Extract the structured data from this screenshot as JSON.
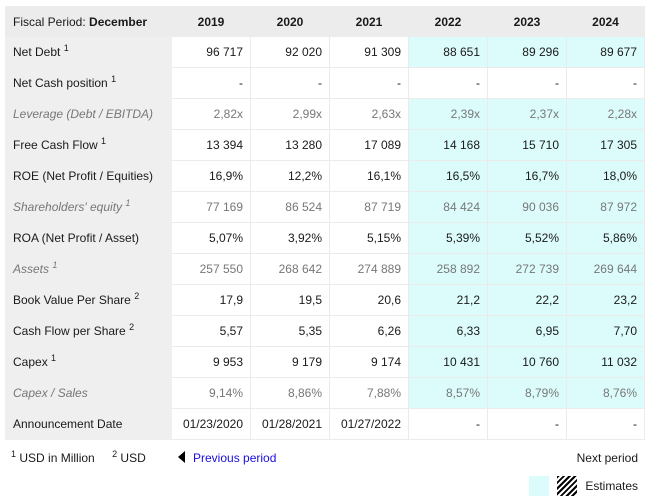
{
  "header": {
    "fiscal_label": "Fiscal Period:",
    "fiscal_value": "December",
    "years": [
      "2019",
      "2020",
      "2021",
      "2022",
      "2023",
      "2024"
    ]
  },
  "rows": [
    {
      "label": "Net Debt",
      "sup": "1",
      "italic": false,
      "est": true,
      "values": [
        "96 717",
        "92 020",
        "91 309",
        "88 651",
        "89 296",
        "89 677"
      ]
    },
    {
      "label": "Net Cash position",
      "sup": "1",
      "italic": false,
      "est": false,
      "values": [
        "-",
        "-",
        "-",
        "-",
        "-",
        "-"
      ]
    },
    {
      "label": "Leverage (Debt / EBITDA)",
      "sup": "",
      "italic": true,
      "est": true,
      "values": [
        "2,82x",
        "2,99x",
        "2,63x",
        "2,39x",
        "2,37x",
        "2,28x"
      ]
    },
    {
      "label": "Free Cash Flow",
      "sup": "1",
      "italic": false,
      "est": true,
      "values": [
        "13 394",
        "13 280",
        "17 089",
        "14 168",
        "15 710",
        "17 305"
      ]
    },
    {
      "label": "ROE (Net Profit / Equities)",
      "sup": "",
      "italic": false,
      "est": true,
      "values": [
        "16,9%",
        "12,2%",
        "16,1%",
        "16,5%",
        "16,7%",
        "18,0%"
      ]
    },
    {
      "label": "Shareholders' equity",
      "sup": "1",
      "italic": true,
      "est": true,
      "values": [
        "77 169",
        "86 524",
        "87 719",
        "84 424",
        "90 036",
        "87 972"
      ]
    },
    {
      "label": "ROA (Net Profit / Asset)",
      "sup": "",
      "italic": false,
      "est": true,
      "values": [
        "5,07%",
        "3,92%",
        "5,15%",
        "5,39%",
        "5,52%",
        "5,86%"
      ]
    },
    {
      "label": "Assets",
      "sup": "1",
      "italic": true,
      "est": true,
      "values": [
        "257 550",
        "268 642",
        "274 889",
        "258 892",
        "272 739",
        "269 644"
      ]
    },
    {
      "label": "Book Value Per Share",
      "sup": "2",
      "italic": false,
      "est": true,
      "values": [
        "17,9",
        "19,5",
        "20,6",
        "21,2",
        "22,2",
        "23,2"
      ]
    },
    {
      "label": "Cash Flow per Share",
      "sup": "2",
      "italic": false,
      "est": true,
      "values": [
        "5,57",
        "5,35",
        "6,26",
        "6,33",
        "6,95",
        "7,70"
      ]
    },
    {
      "label": "Capex",
      "sup": "1",
      "italic": false,
      "est": true,
      "values": [
        "9 953",
        "9 179",
        "9 174",
        "10 431",
        "10 760",
        "11 032"
      ]
    },
    {
      "label": "Capex / Sales",
      "sup": "",
      "italic": true,
      "est": true,
      "values": [
        "9,14%",
        "8,86%",
        "7,88%",
        "8,57%",
        "8,79%",
        "8,76%"
      ]
    },
    {
      "label": "Announcement Date",
      "sup": "",
      "italic": false,
      "est": false,
      "values": [
        "01/23/2020",
        "01/28/2021",
        "01/27/2022",
        "-",
        "-",
        "-"
      ]
    }
  ],
  "footer": {
    "fn1_sup": "1",
    "fn1_text": "USD in Million",
    "fn2_sup": "2",
    "fn2_text": "USD",
    "previous": "Previous period",
    "next": "Next period",
    "legend_label": "Estimates"
  },
  "colors": {
    "estimate_bg": "#dcfcfc",
    "link": "#1a0dde",
    "header_bg": "#ececec"
  }
}
